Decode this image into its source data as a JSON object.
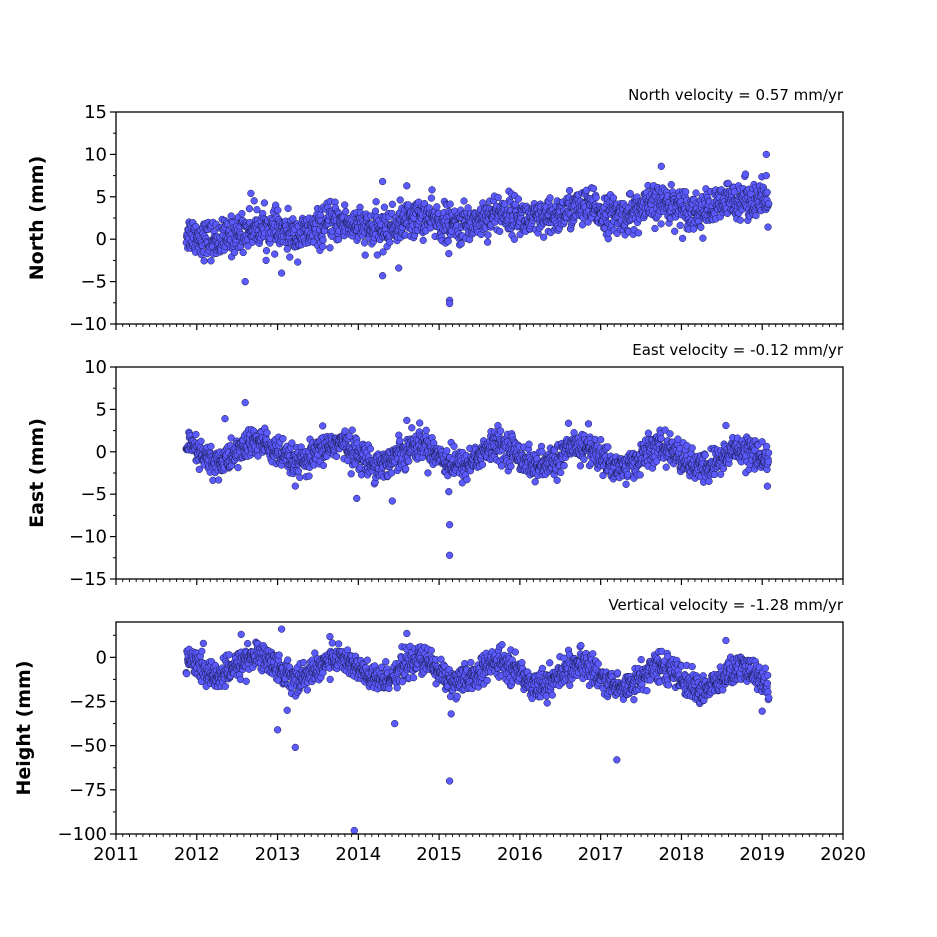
{
  "colors": {
    "marker_fill": "#5a5aff",
    "marker_edge": "#1a1a4a"
  },
  "chart_data": [
    {
      "type": "scatter",
      "panel": "north",
      "title": "North velocity = 0.57 mm/yr",
      "xlabel": "",
      "ylabel": "North (mm)",
      "xlim": [
        2011,
        2020
      ],
      "ylim": [
        -10,
        15
      ],
      "yticks": [
        -10,
        -5,
        0,
        5,
        10,
        15
      ],
      "yticklabels": [
        "−10",
        "−5",
        "0",
        "5",
        "10",
        "15"
      ],
      "grid": false,
      "data_range_x": [
        2011.87,
        2019.08
      ],
      "trend": {
        "start": 0.3,
        "slope": 0.57,
        "scatter": 1.1,
        "seasonal_amplitude": 0.6
      },
      "outliers": [
        {
          "x": 2012.6,
          "y": -5.0
        },
        {
          "x": 2013.05,
          "y": -4.0
        },
        {
          "x": 2014.3,
          "y": -4.3
        },
        {
          "x": 2014.5,
          "y": -3.4
        },
        {
          "x": 2015.13,
          "y": -7.2
        },
        {
          "x": 2015.13,
          "y": -7.6
        },
        {
          "x": 2015.12,
          "y": -1.7
        },
        {
          "x": 2012.67,
          "y": 5.4
        },
        {
          "x": 2014.3,
          "y": 6.8
        },
        {
          "x": 2014.6,
          "y": 6.3
        },
        {
          "x": 2017.75,
          "y": 8.6
        },
        {
          "x": 2019.05,
          "y": 10.0
        },
        {
          "x": 2019.05,
          "y": 7.5
        }
      ]
    },
    {
      "type": "scatter",
      "panel": "east",
      "title": "East velocity = -0.12 mm/yr",
      "xlabel": "",
      "ylabel": "East (mm)",
      "xlim": [
        2011,
        2020
      ],
      "ylim": [
        -15,
        10
      ],
      "yticks": [
        -15,
        -10,
        -5,
        0,
        5,
        10
      ],
      "yticklabels": [
        "−15",
        "−10",
        "−5",
        "0",
        "5",
        "10"
      ],
      "grid": false,
      "data_range_x": [
        2011.87,
        2019.08
      ],
      "trend": {
        "start": 0.0,
        "slope": -0.12,
        "scatter": 0.9,
        "seasonal_amplitude": 1.2
      },
      "outliers": [
        {
          "x": 2012.6,
          "y": 5.8
        },
        {
          "x": 2012.35,
          "y": 3.9
        },
        {
          "x": 2014.6,
          "y": 3.7
        },
        {
          "x": 2013.98,
          "y": -5.5
        },
        {
          "x": 2014.42,
          "y": -5.8
        },
        {
          "x": 2015.13,
          "y": -8.6
        },
        {
          "x": 2015.13,
          "y": -12.2
        },
        {
          "x": 2015.12,
          "y": -4.7
        },
        {
          "x": 2016.85,
          "y": 3.3
        },
        {
          "x": 2018.55,
          "y": 3.1
        }
      ]
    },
    {
      "type": "scatter",
      "panel": "height",
      "title": "Vertical velocity = -1.28 mm/yr",
      "xlabel": "",
      "ylabel": "Height (mm)",
      "xlim": [
        2011,
        2020
      ],
      "ylim": [
        -100,
        20
      ],
      "yticks": [
        -100,
        -75,
        -50,
        -25,
        0
      ],
      "yticklabels": [
        "−100",
        "−75",
        "−50",
        "−25",
        "0"
      ],
      "grid": false,
      "data_range_x": [
        2011.87,
        2019.08
      ],
      "trend": {
        "start": -4.0,
        "slope": -1.28,
        "scatter": 4.0,
        "seasonal_amplitude": 6.0
      },
      "outliers": [
        {
          "x": 2013.05,
          "y": 16.0
        },
        {
          "x": 2012.55,
          "y": 13.0
        },
        {
          "x": 2014.6,
          "y": 13.5
        },
        {
          "x": 2013.0,
          "y": -41.0
        },
        {
          "x": 2013.12,
          "y": -30.0
        },
        {
          "x": 2013.22,
          "y": -51.0
        },
        {
          "x": 2013.95,
          "y": -98.0
        },
        {
          "x": 2014.45,
          "y": -37.5
        },
        {
          "x": 2015.13,
          "y": -70.0
        },
        {
          "x": 2015.15,
          "y": -32.0
        },
        {
          "x": 2017.2,
          "y": -58.0
        },
        {
          "x": 2018.55,
          "y": 9.5
        },
        {
          "x": 2019.0,
          "y": -30.5
        }
      ]
    }
  ],
  "x_axis": {
    "ticks": [
      2011,
      2012,
      2013,
      2014,
      2015,
      2016,
      2017,
      2018,
      2019,
      2020
    ],
    "ticklabels": [
      "2011",
      "2012",
      "2013",
      "2014",
      "2015",
      "2016",
      "2017",
      "2018",
      "2019",
      "2020"
    ],
    "minor_ticks_per_year": 12,
    "labels_on_bottom_panel_only": true
  }
}
